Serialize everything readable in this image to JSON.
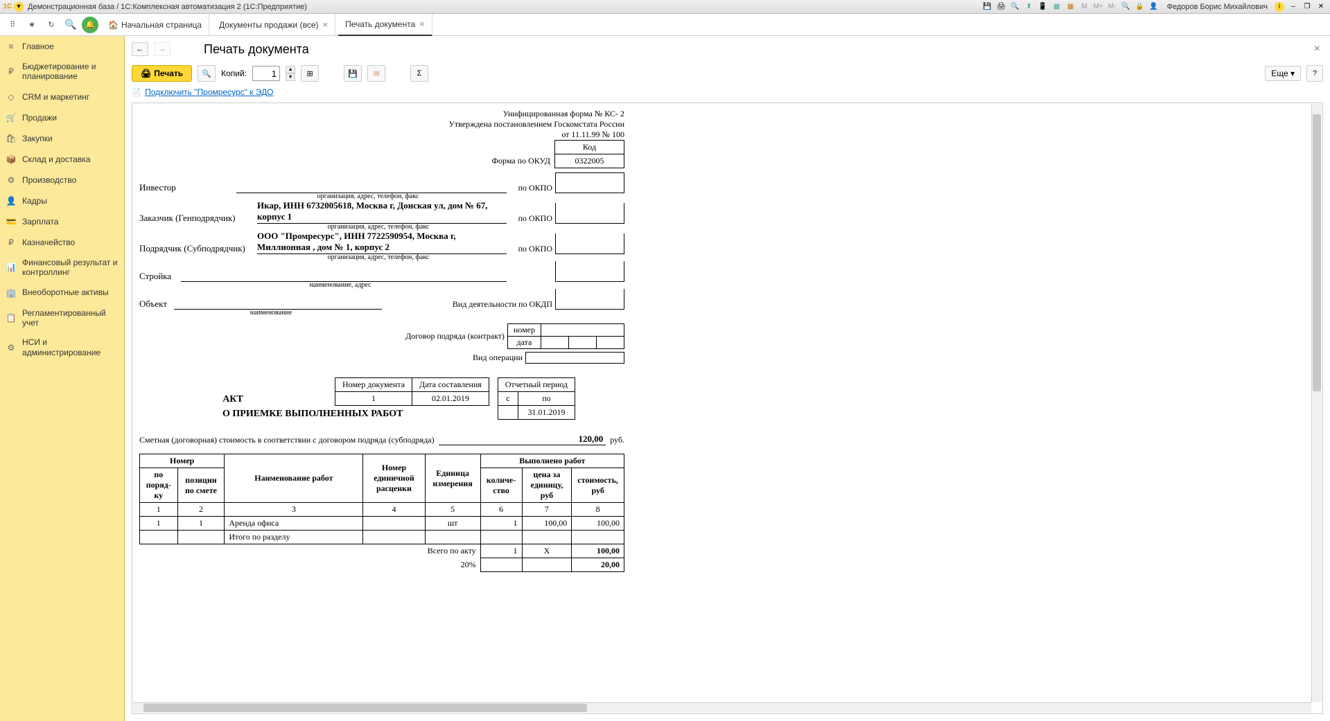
{
  "titlebar": {
    "title": "Демонстрационная база / 1С:Комплексная автоматизация 2  (1С:Предприятие)",
    "user": "Федоров Борис Михайлович"
  },
  "tabs": {
    "home": "Начальная страница",
    "t1": "Документы продажи (все)",
    "t2": "Печать документа"
  },
  "sidebar": {
    "items": [
      {
        "icon": "≡",
        "label": "Главное"
      },
      {
        "icon": "₽",
        "label": "Бюджетирование и планирование"
      },
      {
        "icon": "◇",
        "label": "CRM и маркетинг"
      },
      {
        "icon": "🛒",
        "label": "Продажи"
      },
      {
        "icon": "🛍",
        "label": "Закупки"
      },
      {
        "icon": "📦",
        "label": "Склад и доставка"
      },
      {
        "icon": "⚙",
        "label": "Производство"
      },
      {
        "icon": "👤",
        "label": "Кадры"
      },
      {
        "icon": "💳",
        "label": "Зарплата"
      },
      {
        "icon": "₽",
        "label": "Казначейство"
      },
      {
        "icon": "📊",
        "label": "Финансовый результат и контроллинг"
      },
      {
        "icon": "🏢",
        "label": "Внеоборотные активы"
      },
      {
        "icon": "📋",
        "label": "Регламентированный учет"
      },
      {
        "icon": "⚙",
        "label": "НСИ и администрирование"
      }
    ]
  },
  "page": {
    "title": "Печать документа",
    "print_btn": "Печать",
    "copies_label": "Копий:",
    "copies_value": "1",
    "more_btn": "Еще",
    "edo_link": "Подключить \"Промресурс\" к ЭДО"
  },
  "doc": {
    "form_no": "Унифицированная форма № КС- 2",
    "approved": "Утверждена постановлением Госкомстата России",
    "date_no": "от 11.11.99 № 100",
    "code_head": "Код",
    "okud_label": "Форма по ОКУД",
    "okud_code": "0322005",
    "investor_label": "Инвестор",
    "investor_value": "",
    "okpo_label": "по ОКПО",
    "hint_org": "организация, адрес, телефон, факс",
    "customer_label": "Заказчик (Генподрядчик)",
    "customer_value": "Икар, ИНН 6732005618, Москва г, Донская ул, дом № 67, корпус 1",
    "contractor_label": "Подрядчик (Субподрядчик)",
    "contractor_value": "ООО \"Промресурс\", ИНН 7722590954, Москва г, Миллионная , дом № 1, корпус 2",
    "stroika_label": "Стройка",
    "stroika_hint": "наименование, адрес",
    "object_label": "Объект",
    "object_hint": "наименование",
    "okdp_label": "Вид деятельности по ОКДП",
    "contract_label": "Договор подряда (контракт)",
    "contract_num_label": "номер",
    "contract_date_label": "дата",
    "oper_label": "Вид операции",
    "num_head1": "Номер документа",
    "num_head2": "Дата составления",
    "num_val1": "1",
    "num_val2": "02.01.2019",
    "period_head": "Отчетный период",
    "period_from": "с",
    "period_to": "по",
    "period_to_val": "31.01.2019",
    "akt": "АКТ",
    "akt_sub": "О ПРИЕМКЕ ВЫПОЛНЕННЫХ РАБОТ",
    "smeta_label": "Сметная (договорная) стоимость в соответствии с договором подряда (субподряда)",
    "smeta_val": "120,00",
    "smeta_rub": "руб.",
    "th_num": "Номер",
    "th_poryad": "по поряд-ку",
    "th_smete": "позиции по смете",
    "th_naim": "Наименование работ",
    "th_edrasc": "Номер единичной расценки",
    "th_edizm": "Единица измерения",
    "th_vypol": "Выполнено работ",
    "th_kol": "количе-ство",
    "th_cena": "цена за единицу, руб",
    "th_stoim": "стоимость,   руб",
    "cols": {
      "c1": "1",
      "c2": "2",
      "c3": "3",
      "c4": "4",
      "c5": "5",
      "c6": "6",
      "c7": "7",
      "c8": "8"
    },
    "row1": {
      "n": "1",
      "sm": "1",
      "name": "Аренда офиса",
      "ed": "шт",
      "kol": "1",
      "cena": "100,00",
      "stoim": "100,00"
    },
    "itogo_label": "Итого по разделу",
    "vsego_label": "Всего по акту",
    "vsego_kol": "1",
    "vsego_x": "X",
    "vsego_stoim": "100,00",
    "pct_label": "20%",
    "pct_stoim": "20,00"
  }
}
